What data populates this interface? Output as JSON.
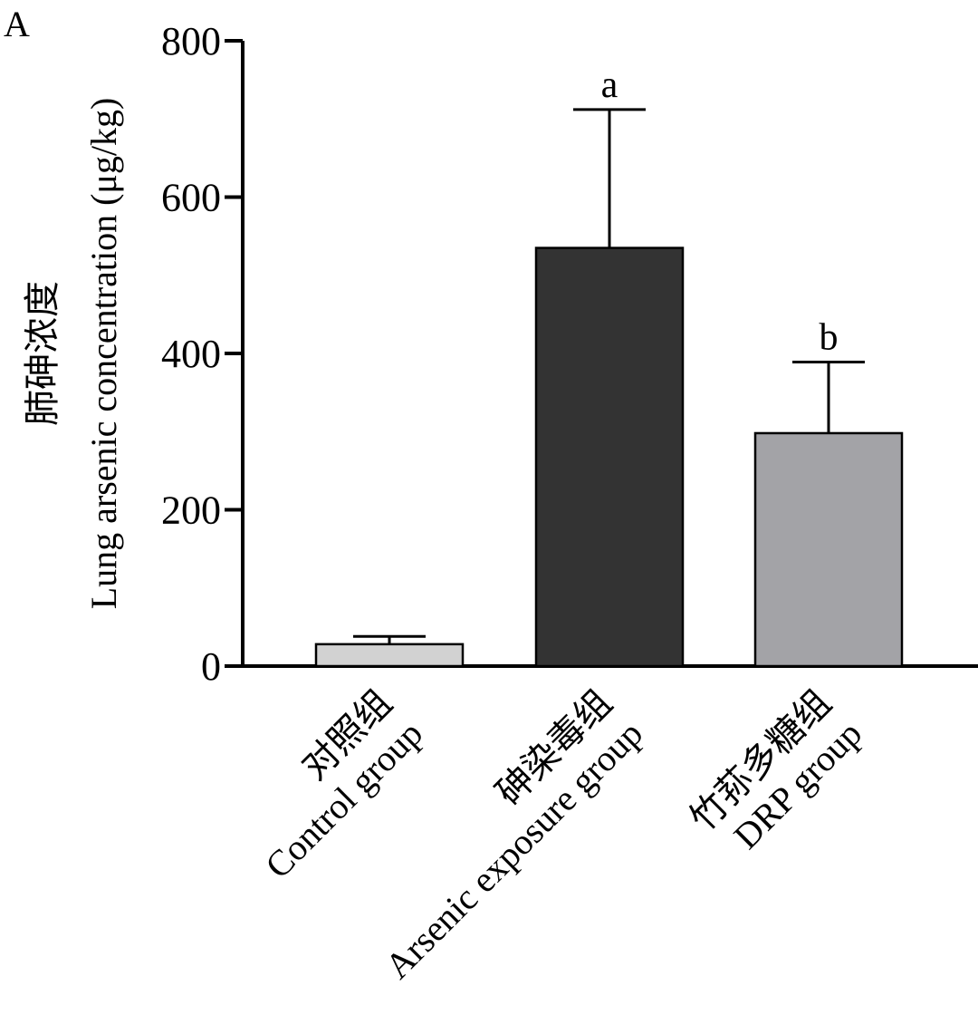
{
  "chart_data": {
    "type": "bar",
    "panel_label": "A",
    "ylabel_zh": "肺砷浓度",
    "ylabel_en": "Lung arsenic concentration (μg/kg)",
    "ylim": [
      0,
      800
    ],
    "yticks": [
      0,
      200,
      400,
      600,
      800
    ],
    "categories": [
      {
        "zh": "对照组",
        "en": "Control group"
      },
      {
        "zh": "砷染毒组",
        "en": "Arsenic exposure group"
      },
      {
        "zh": "竹荪多糖组",
        "en": "DRP group"
      }
    ],
    "values": [
      28,
      535,
      298
    ],
    "error": [
      10,
      177,
      91
    ],
    "significance": [
      "",
      "a",
      "b"
    ],
    "colors": [
      "#d2d2d2",
      "#333333",
      "#a3a3a7"
    ]
  }
}
